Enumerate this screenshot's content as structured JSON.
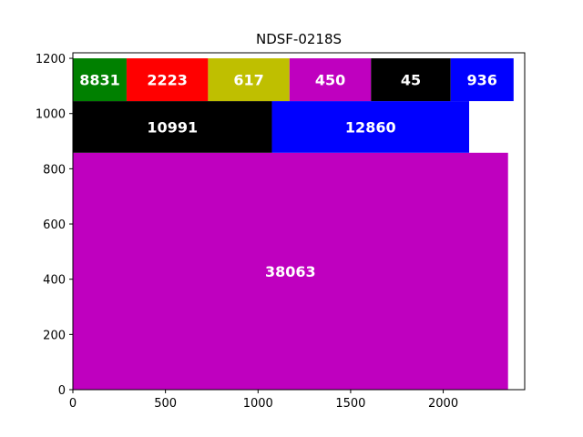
{
  "chart_data": {
    "type": "treemap-bar",
    "title": "NDSF-0218S",
    "xlim": [
      0,
      2440
    ],
    "ylim": [
      0,
      1220
    ],
    "xticks": [
      0,
      500,
      1000,
      1500,
      2000
    ],
    "yticks": [
      0,
      200,
      400,
      600,
      800,
      1000,
      1200
    ],
    "grid": false,
    "blocks": [
      {
        "label": "38063",
        "x0": 0,
        "x1": 2350,
        "y0": 0,
        "y1": 858,
        "color": "#bf00bf"
      },
      {
        "label": "10991",
        "x0": 0,
        "x1": 1075,
        "y0": 858,
        "y1": 1045,
        "color": "#000000"
      },
      {
        "label": "12860",
        "x0": 1075,
        "x1": 2140,
        "y0": 858,
        "y1": 1045,
        "color": "#0000ff"
      },
      {
        "label": "8831",
        "x0": 0,
        "x1": 290,
        "y0": 1045,
        "y1": 1200,
        "color": "#008000"
      },
      {
        "label": "2223",
        "x0": 290,
        "x1": 730,
        "y0": 1045,
        "y1": 1200,
        "color": "#ff0000"
      },
      {
        "label": "617",
        "x0": 730,
        "x1": 1170,
        "y0": 1045,
        "y1": 1200,
        "color": "#bfbf00"
      },
      {
        "label": "450",
        "x0": 1170,
        "x1": 1610,
        "y0": 1045,
        "y1": 1200,
        "color": "#bf00bf"
      },
      {
        "label": "45",
        "x0": 1610,
        "x1": 2040,
        "y0": 1045,
        "y1": 1200,
        "color": "#000000"
      },
      {
        "label": "936",
        "x0": 2040,
        "x1": 2380,
        "y0": 1045,
        "y1": 1200,
        "color": "#0000ff"
      }
    ]
  }
}
